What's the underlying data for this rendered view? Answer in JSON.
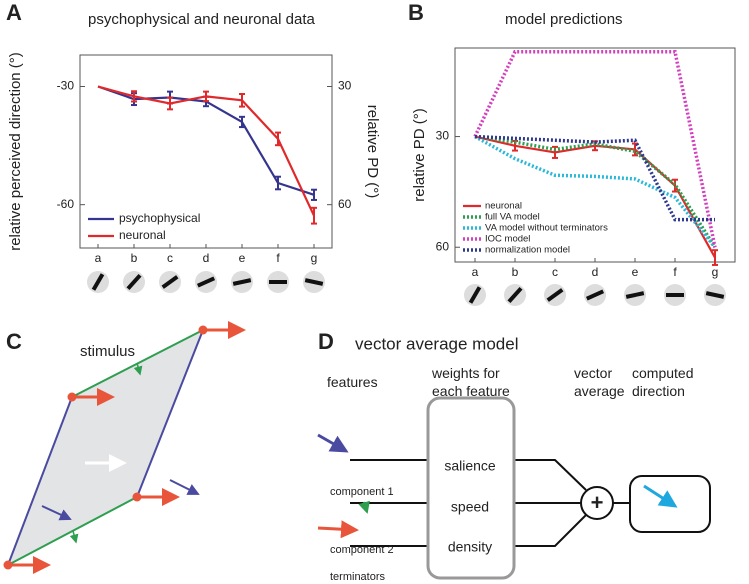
{
  "panel_labels": [
    "A",
    "B",
    "C",
    "D"
  ],
  "chart_data": [
    {
      "type": "line",
      "title": "psychophysical and neuronal data",
      "ylabel": "relative perceived direction (°)",
      "y2label": "relative PD (°)",
      "categories": [
        "a",
        "b",
        "c",
        "d",
        "e",
        "f",
        "g"
      ],
      "ylim": [
        -71,
        -22
      ],
      "yticks": [
        -30,
        -60
      ],
      "y2lim": [
        71,
        22
      ],
      "y2ticks": [
        30,
        60
      ],
      "legend": "lower left",
      "series": [
        {
          "name": "psychophysical",
          "color": "#35358f",
          "linestyle": "solid",
          "values": [
            -30,
            -33.2,
            -32.8,
            -33.8,
            -39,
            -54.5,
            -57.5
          ],
          "errors": [
            null,
            1.5,
            1.5,
            1.2,
            1.3,
            1.6,
            1.3
          ]
        },
        {
          "name": "neuronal",
          "color": "#e0292b",
          "linestyle": "solid",
          "axis": "y2",
          "values": [
            30,
            32.5,
            34.3,
            32.5,
            33.5,
            43.3,
            62.8
          ],
          "errors": [
            null,
            1.3,
            1.5,
            1.2,
            1.6,
            1.6,
            2
          ]
        }
      ]
    },
    {
      "type": "line",
      "title": "model predictions",
      "ylabel": "relative PD (°)",
      "categories": [
        "a",
        "b",
        "c",
        "d",
        "e",
        "f",
        "g"
      ],
      "ylim": [
        64,
        6
      ],
      "yticks": [
        30,
        60
      ],
      "legend": "lower left",
      "series": [
        {
          "name": "neuronal",
          "color": "#e0292b",
          "linestyle": "solid",
          "values": [
            30,
            32.5,
            34.3,
            32.5,
            33.5,
            43.3,
            62.8
          ],
          "errors": [
            null,
            1.3,
            1.5,
            1.2,
            1.6,
            1.6,
            2
          ]
        },
        {
          "name": "full VA model",
          "color": "#2e9e4f",
          "linestyle": "dotted",
          "values": [
            30,
            31.5,
            33.5,
            32,
            34,
            43,
            60
          ]
        },
        {
          "name": "VA model without terminators",
          "color": "#2bb8d8",
          "linestyle": "dotted",
          "values": [
            30,
            36,
            40.5,
            40.8,
            41.5,
            46.5,
            60
          ]
        },
        {
          "name": "IOC model",
          "color": "#d43fbf",
          "linestyle": "dotted",
          "values": [
            30,
            7,
            7,
            7,
            7,
            7,
            60
          ]
        },
        {
          "name": "normalization model",
          "color": "#2f3a8f",
          "linestyle": "dotted",
          "values": [
            30,
            30.5,
            31,
            31.5,
            31,
            52.5,
            52.5
          ]
        }
      ]
    }
  ],
  "stimulus": {
    "title": "stimulus"
  },
  "model": {
    "title": "vector average model",
    "headers": [
      "features",
      "weights for\neach feature",
      "vector\naverage",
      "computed\ndirection"
    ],
    "features": [
      "component 1",
      "component 2",
      "terminators"
    ],
    "weights": [
      "salience",
      "speed",
      "density"
    ],
    "operator": "+"
  }
}
